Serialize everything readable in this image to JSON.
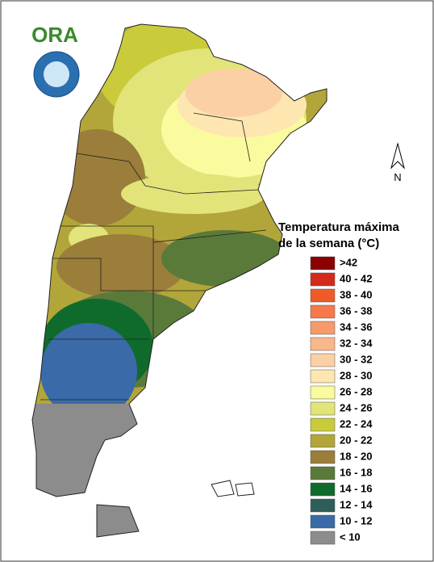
{
  "logo": {
    "text": "ORA"
  },
  "compass": {
    "label": "N"
  },
  "legend": {
    "title": [
      "Temperatura máxima",
      "de la semana (°C)"
    ],
    "items": [
      {
        "label": ">42",
        "color": "#8b0000"
      },
      {
        "label": "40 - 42",
        "color": "#d42a1a"
      },
      {
        "label": "38 - 40",
        "color": "#f05a28"
      },
      {
        "label": "36 - 38",
        "color": "#f5794a"
      },
      {
        "label": "34 - 36",
        "color": "#f79a6a"
      },
      {
        "label": "32 - 34",
        "color": "#f9b78a"
      },
      {
        "label": "30 - 32",
        "color": "#fbd0a4"
      },
      {
        "label": "28 - 30",
        "color": "#fde6b0"
      },
      {
        "label": "26 - 28",
        "color": "#fafa9e"
      },
      {
        "label": "24 - 26",
        "color": "#e2e47a"
      },
      {
        "label": "22 - 24",
        "color": "#c9cb3a"
      },
      {
        "label": "20 - 22",
        "color": "#b2a63a"
      },
      {
        "label": "18 - 20",
        "color": "#9a7e3a"
      },
      {
        "label": "16 - 18",
        "color": "#5a7a3a"
      },
      {
        "label": "14 - 16",
        "color": "#0f6b2c"
      },
      {
        "label": "12 - 14",
        "color": "#2e5e5a"
      },
      {
        "label": "10 - 12",
        "color": "#3a6aa8"
      },
      {
        "label": "< 10",
        "color": "#8c8c8c"
      }
    ]
  }
}
